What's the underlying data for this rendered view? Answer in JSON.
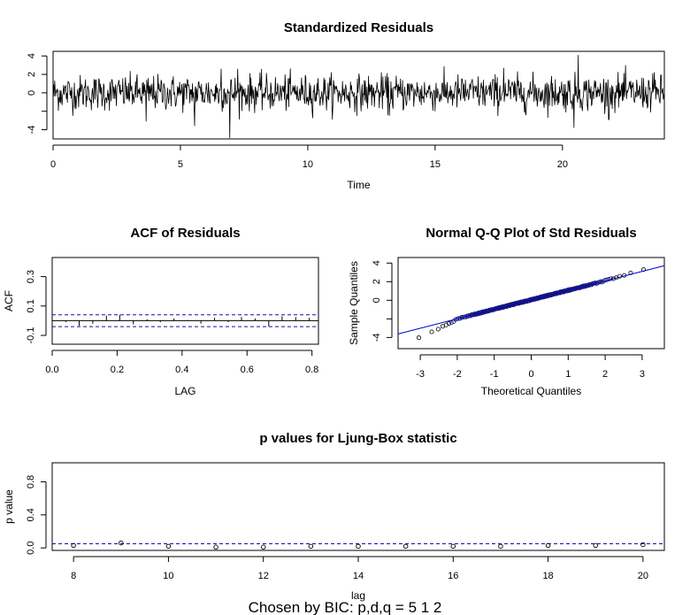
{
  "chart_data": [
    {
      "id": "resid",
      "type": "line",
      "title": "Standardized Residuals",
      "xlabel": "Time",
      "ylabel": "",
      "xlim": [
        0,
        24
      ],
      "ylim": [
        -5,
        4.5
      ],
      "xticks": [
        0,
        5,
        10,
        15,
        20
      ],
      "yticks": [
        -4,
        -2,
        0,
        2,
        4
      ],
      "yticklabels": [
        "-4",
        "",
        "0",
        "2",
        "4"
      ],
      "spikes": [
        {
          "x": 6.93,
          "y": -4.9
        },
        {
          "x": 20.62,
          "y": 4.1
        },
        {
          "x": 20.45,
          "y": -3.8
        },
        {
          "x": 5.55,
          "y": -3.6
        },
        {
          "x": 22.48,
          "y": 3.0
        },
        {
          "x": 17.7,
          "y": 2.7
        },
        {
          "x": 6.6,
          "y": 2.6
        },
        {
          "x": 7.25,
          "y": 2.6
        },
        {
          "x": 23.55,
          "y": 2.1
        },
        {
          "x": 3.65,
          "y": -3.1
        },
        {
          "x": 21.8,
          "y": -2.9
        },
        {
          "x": 13.2,
          "y": -2.5
        }
      ]
    },
    {
      "id": "acf",
      "type": "bar",
      "title": "ACF of Residuals",
      "xlabel": "LAG",
      "ylabel": "ACF",
      "xlim": [
        0,
        0.82
      ],
      "ylim": [
        -0.16,
        0.43
      ],
      "xticks": [
        0.0,
        0.2,
        0.4,
        0.6,
        0.8
      ],
      "xticklabels": [
        "0.0",
        "0.2",
        "0.4",
        "0.6",
        "0.8"
      ],
      "yticks": [
        -0.1,
        0.1,
        0.3
      ],
      "yticklabels": [
        "-0.1",
        "0.1",
        "0.3"
      ],
      "ci": 0.04,
      "x": [
        0.042,
        0.083,
        0.125,
        0.167,
        0.208,
        0.25,
        0.292,
        0.333,
        0.375,
        0.417,
        0.458,
        0.5,
        0.542,
        0.583,
        0.625,
        0.667,
        0.708,
        0.75,
        0.792
      ],
      "values": [
        -0.01,
        -0.035,
        -0.02,
        0.035,
        0.04,
        -0.025,
        0.01,
        -0.01,
        0.015,
        0.005,
        -0.02,
        0.02,
        -0.01,
        0.025,
        0.015,
        -0.04,
        0.03,
        0.025,
        0.02
      ]
    },
    {
      "id": "qq",
      "type": "scatter",
      "title": "Normal Q-Q Plot of Std Residuals",
      "xlabel": "Theoretical Quantiles",
      "ylabel": "Sample Quantiles",
      "xlim": [
        -3.6,
        3.6
      ],
      "ylim": [
        -5.2,
        4.6
      ],
      "xticks": [
        -3,
        -2,
        -1,
        0,
        1,
        2,
        3
      ],
      "yticks": [
        -4,
        -2,
        0,
        2,
        4
      ],
      "yticklabels": [
        "-4",
        "",
        "0",
        "2",
        "4"
      ],
      "reference_line": {
        "intercept": 0.05,
        "slope": 1.02
      }
    },
    {
      "id": "ljung",
      "type": "scatter",
      "title": "p values for Ljung-Box statistic",
      "xlabel": "lag",
      "ylabel": "p value",
      "xlim": [
        7.55,
        20.45
      ],
      "ylim": [
        -0.03,
        1.03
      ],
      "xticks": [
        8,
        10,
        12,
        14,
        16,
        18,
        20
      ],
      "yticks": [
        0.0,
        0.4,
        0.8
      ],
      "yticklabels": [
        "0.0",
        "0.4",
        "0.8"
      ],
      "threshold": 0.05,
      "x": [
        8,
        9,
        10,
        11,
        12,
        13,
        14,
        15,
        16,
        17,
        18,
        19,
        20
      ],
      "values": [
        0.03,
        0.06,
        0.02,
        0.01,
        0.01,
        0.02,
        0.02,
        0.02,
        0.02,
        0.02,
        0.03,
        0.03,
        0.04
      ]
    }
  ],
  "caption": "Chosen by BIC: p,d,q = 5 1 2"
}
